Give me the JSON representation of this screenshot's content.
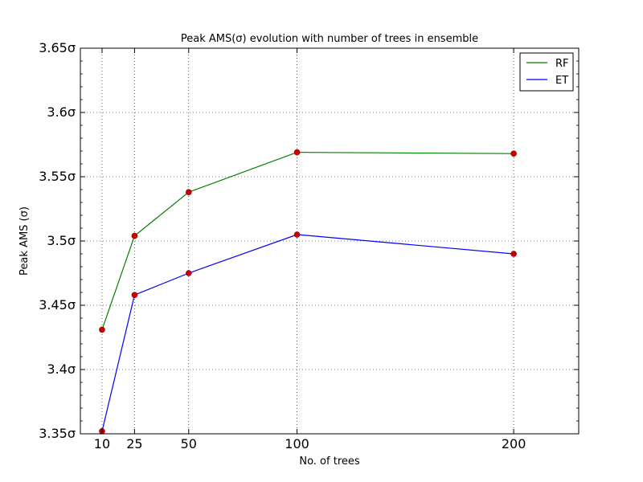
{
  "chart_data": {
    "type": "line",
    "title": "Peak AMS(σ) evolution with number of trees in ensemble",
    "xlabel": "No. of trees",
    "ylabel": "Peak AMS (σ)",
    "xlim": [
      0,
      230
    ],
    "ylim": [
      3.35,
      3.65
    ],
    "x_ticks": [
      10,
      25,
      50,
      100,
      200
    ],
    "y_ticks": [
      3.35,
      3.4,
      3.45,
      3.5,
      3.55,
      3.6,
      3.65
    ],
    "y_tick_labels": [
      "3.35σ",
      "3.4σ",
      "3.45σ",
      "3.5σ",
      "3.55σ",
      "3.6σ",
      "3.65σ"
    ],
    "grid": true,
    "legend_position": "top-right",
    "marker_color": "#cc0000",
    "series": [
      {
        "name": "RF",
        "color": "#008000",
        "x": [
          10,
          25,
          50,
          100,
          200
        ],
        "y": [
          3.431,
          3.504,
          3.538,
          3.569,
          3.568
        ]
      },
      {
        "name": "ET",
        "color": "#0000ff",
        "x": [
          10,
          25,
          50,
          100,
          200
        ],
        "y": [
          3.352,
          3.458,
          3.475,
          3.505,
          3.49
        ]
      }
    ]
  }
}
